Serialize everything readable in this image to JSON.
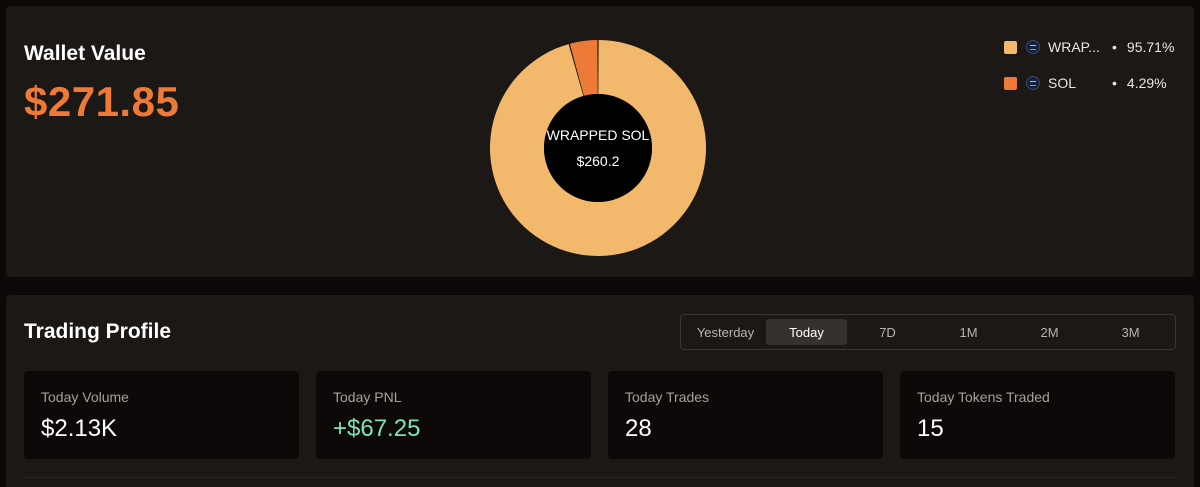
{
  "wallet": {
    "title": "Wallet Value",
    "amount": "$271.85"
  },
  "allocation": {
    "center_name": "WRAPPED SOL",
    "center_value": "$260.2",
    "items": [
      {
        "name": "WRAP...",
        "full_name": "WRAPPED SOL",
        "percent_label": "95.71%",
        "percent": 95.71,
        "color": "#f2b96c",
        "icon": "solana-token-icon"
      },
      {
        "name": "SOL",
        "full_name": "SOL",
        "percent_label": "4.29%",
        "percent": 4.29,
        "color": "#ee7a37",
        "icon": "solana-token-icon"
      }
    ],
    "legend_bullet": "•"
  },
  "trading": {
    "title": "Trading Profile",
    "tabs": [
      {
        "label": "Yesterday",
        "active": false
      },
      {
        "label": "Today",
        "active": true
      },
      {
        "label": "7D",
        "active": false
      },
      {
        "label": "1M",
        "active": false
      },
      {
        "label": "2M",
        "active": false
      },
      {
        "label": "3M",
        "active": false
      }
    ],
    "stats": [
      {
        "label": "Today Volume",
        "value": "$2.13K",
        "positive": false
      },
      {
        "label": "Today PNL",
        "value": "+$67.25",
        "positive": true
      },
      {
        "label": "Today Trades",
        "value": "28",
        "positive": false
      },
      {
        "label": "Today Tokens Traded",
        "value": "15",
        "positive": false
      }
    ]
  },
  "colors": {
    "accent_orange": "#ee7a37",
    "accent_light": "#f2b96c",
    "positive_green": "#7fe3b7",
    "panel_bg": "#1c1816",
    "card_bg": "#0d0908"
  }
}
